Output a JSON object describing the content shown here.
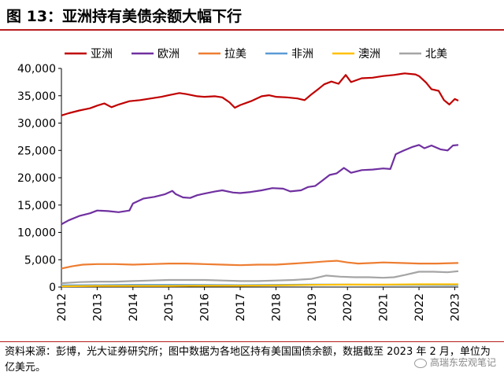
{
  "header": {
    "title": "图 13：亚洲持有美债余额大幅下行"
  },
  "footer": {
    "note": "资料来源：彭博，光大证券研究所；图中数据为各地区持有美国国债余额，数据截至 2023 年 2 月，单位为亿美元。",
    "watermark": "高瑞东宏观笔记"
  },
  "colors": {
    "亚洲": "#c00000",
    "欧洲": "#7030a0",
    "拉美": "#ed7d31",
    "非洲": "#5b9bd5",
    "澳洲": "#ffc000",
    "北美": "#a5a5a5"
  },
  "chart_data": {
    "type": "line",
    "ylim": [
      0,
      40000
    ],
    "yticks": [
      0,
      5000,
      10000,
      15000,
      20000,
      25000,
      30000,
      35000,
      40000
    ],
    "ytick_labels": [
      "0",
      "5,000",
      "10,000",
      "15,000",
      "20,000",
      "25,000",
      "30,000",
      "35,000",
      "40,000"
    ],
    "xlim": [
      2012.0,
      2023.1
    ],
    "xticks": [
      "2012",
      "2013",
      "2014",
      "2015",
      "2016",
      "2017",
      "2018",
      "2019",
      "2020",
      "2021",
      "2022",
      "2023"
    ],
    "legend_position": "top",
    "series": [
      {
        "name": "亚洲",
        "color": "#c00000",
        "points": [
          [
            2012.0,
            31400
          ],
          [
            2012.2,
            31800
          ],
          [
            2012.5,
            32300
          ],
          [
            2012.8,
            32700
          ],
          [
            2013.0,
            33200
          ],
          [
            2013.2,
            33600
          ],
          [
            2013.4,
            32900
          ],
          [
            2013.6,
            33400
          ],
          [
            2013.9,
            34000
          ],
          [
            2014.2,
            34200
          ],
          [
            2014.5,
            34500
          ],
          [
            2014.8,
            34800
          ],
          [
            2015.0,
            35100
          ],
          [
            2015.3,
            35500
          ],
          [
            2015.5,
            35300
          ],
          [
            2015.8,
            34900
          ],
          [
            2016.0,
            34800
          ],
          [
            2016.3,
            34900
          ],
          [
            2016.5,
            34700
          ],
          [
            2016.7,
            33800
          ],
          [
            2016.85,
            32800
          ],
          [
            2017.0,
            33300
          ],
          [
            2017.3,
            34000
          ],
          [
            2017.6,
            34900
          ],
          [
            2017.8,
            35100
          ],
          [
            2018.0,
            34800
          ],
          [
            2018.3,
            34700
          ],
          [
            2018.6,
            34500
          ],
          [
            2018.8,
            34200
          ],
          [
            2019.0,
            35300
          ],
          [
            2019.2,
            36300
          ],
          [
            2019.35,
            37100
          ],
          [
            2019.55,
            37600
          ],
          [
            2019.75,
            37200
          ],
          [
            2019.95,
            38800
          ],
          [
            2020.1,
            37500
          ],
          [
            2020.4,
            38200
          ],
          [
            2020.7,
            38300
          ],
          [
            2021.0,
            38600
          ],
          [
            2021.3,
            38800
          ],
          [
            2021.6,
            39100
          ],
          [
            2021.9,
            38900
          ],
          [
            2022.0,
            38600
          ],
          [
            2022.2,
            37400
          ],
          [
            2022.35,
            36200
          ],
          [
            2022.55,
            35900
          ],
          [
            2022.7,
            34200
          ],
          [
            2022.85,
            33400
          ],
          [
            2023.0,
            34400
          ],
          [
            2023.1,
            34100
          ]
        ]
      },
      {
        "name": "欧洲",
        "color": "#7030a0",
        "points": [
          [
            2012.0,
            11500
          ],
          [
            2012.2,
            12200
          ],
          [
            2012.5,
            13000
          ],
          [
            2012.8,
            13500
          ],
          [
            2013.0,
            14000
          ],
          [
            2013.3,
            13900
          ],
          [
            2013.6,
            13700
          ],
          [
            2013.9,
            14000
          ],
          [
            2014.0,
            15300
          ],
          [
            2014.3,
            16200
          ],
          [
            2014.6,
            16500
          ],
          [
            2014.9,
            17000
          ],
          [
            2015.1,
            17600
          ],
          [
            2015.2,
            17000
          ],
          [
            2015.4,
            16400
          ],
          [
            2015.6,
            16300
          ],
          [
            2015.8,
            16800
          ],
          [
            2016.0,
            17100
          ],
          [
            2016.3,
            17500
          ],
          [
            2016.5,
            17700
          ],
          [
            2016.8,
            17300
          ],
          [
            2017.0,
            17200
          ],
          [
            2017.3,
            17400
          ],
          [
            2017.6,
            17700
          ],
          [
            2017.9,
            18100
          ],
          [
            2018.2,
            18000
          ],
          [
            2018.4,
            17500
          ],
          [
            2018.7,
            17700
          ],
          [
            2018.9,
            18300
          ],
          [
            2019.1,
            18500
          ],
          [
            2019.3,
            19500
          ],
          [
            2019.5,
            20500
          ],
          [
            2019.7,
            20800
          ],
          [
            2019.9,
            21800
          ],
          [
            2020.1,
            20900
          ],
          [
            2020.4,
            21400
          ],
          [
            2020.7,
            21500
          ],
          [
            2021.0,
            21700
          ],
          [
            2021.2,
            21600
          ],
          [
            2021.35,
            24300
          ],
          [
            2021.55,
            24900
          ],
          [
            2021.8,
            25600
          ],
          [
            2022.0,
            26000
          ],
          [
            2022.15,
            25400
          ],
          [
            2022.35,
            25900
          ],
          [
            2022.6,
            25200
          ],
          [
            2022.8,
            25000
          ],
          [
            2022.95,
            25900
          ],
          [
            2023.1,
            26000
          ]
        ]
      },
      {
        "name": "拉美",
        "color": "#ed7d31",
        "points": [
          [
            2012.0,
            3400
          ],
          [
            2012.3,
            3800
          ],
          [
            2012.6,
            4100
          ],
          [
            2013.0,
            4200
          ],
          [
            2013.5,
            4200
          ],
          [
            2014.0,
            4100
          ],
          [
            2014.5,
            4200
          ],
          [
            2015.0,
            4300
          ],
          [
            2015.5,
            4300
          ],
          [
            2016.0,
            4200
          ],
          [
            2016.5,
            4100
          ],
          [
            2017.0,
            4000
          ],
          [
            2017.5,
            4100
          ],
          [
            2018.0,
            4100
          ],
          [
            2018.5,
            4300
          ],
          [
            2019.0,
            4500
          ],
          [
            2019.4,
            4700
          ],
          [
            2019.7,
            4800
          ],
          [
            2020.0,
            4500
          ],
          [
            2020.3,
            4300
          ],
          [
            2020.7,
            4400
          ],
          [
            2021.0,
            4500
          ],
          [
            2021.5,
            4400
          ],
          [
            2022.0,
            4300
          ],
          [
            2022.5,
            4300
          ],
          [
            2023.1,
            4400
          ]
        ]
      },
      {
        "name": "非洲",
        "color": "#5b9bd5",
        "points": [
          [
            2012.0,
            300
          ],
          [
            2013.0,
            350
          ],
          [
            2014.0,
            400
          ],
          [
            2015.0,
            400
          ],
          [
            2016.0,
            380
          ],
          [
            2017.0,
            350
          ],
          [
            2018.0,
            400
          ],
          [
            2019.0,
            450
          ],
          [
            2020.0,
            450
          ],
          [
            2021.0,
            400
          ],
          [
            2022.0,
            400
          ],
          [
            2023.1,
            380
          ]
        ]
      },
      {
        "name": "澳洲",
        "color": "#ffc000",
        "points": [
          [
            2012.0,
            150
          ],
          [
            2013.0,
            200
          ],
          [
            2014.0,
            200
          ],
          [
            2015.0,
            200
          ],
          [
            2016.0,
            250
          ],
          [
            2017.0,
            250
          ],
          [
            2018.0,
            300
          ],
          [
            2019.0,
            400
          ],
          [
            2020.0,
            450
          ],
          [
            2021.0,
            450
          ],
          [
            2022.0,
            500
          ],
          [
            2023.1,
            500
          ]
        ]
      },
      {
        "name": "北美",
        "color": "#a5a5a5",
        "points": [
          [
            2012.0,
            700
          ],
          [
            2012.5,
            900
          ],
          [
            2013.0,
            1000
          ],
          [
            2013.5,
            1000
          ],
          [
            2014.0,
            1100
          ],
          [
            2014.5,
            1200
          ],
          [
            2015.0,
            1300
          ],
          [
            2015.5,
            1300
          ],
          [
            2016.0,
            1300
          ],
          [
            2016.5,
            1200
          ],
          [
            2017.0,
            1100
          ],
          [
            2017.5,
            1100
          ],
          [
            2018.0,
            1200
          ],
          [
            2018.5,
            1300
          ],
          [
            2019.0,
            1500
          ],
          [
            2019.4,
            2100
          ],
          [
            2019.8,
            1900
          ],
          [
            2020.2,
            1800
          ],
          [
            2020.6,
            1800
          ],
          [
            2021.0,
            1700
          ],
          [
            2021.3,
            1800
          ],
          [
            2021.6,
            2200
          ],
          [
            2022.0,
            2800
          ],
          [
            2022.4,
            2800
          ],
          [
            2022.8,
            2700
          ],
          [
            2023.1,
            2900
          ]
        ]
      }
    ]
  }
}
